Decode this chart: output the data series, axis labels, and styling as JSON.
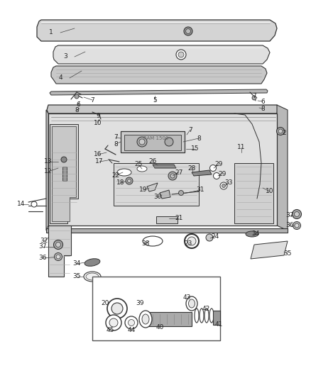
{
  "bg_color": "#ffffff",
  "fig_width": 4.38,
  "fig_height": 5.33,
  "dpi": 100,
  "line_color": "#333333",
  "text_color": "#222222",
  "part_fontsize": 6.5
}
